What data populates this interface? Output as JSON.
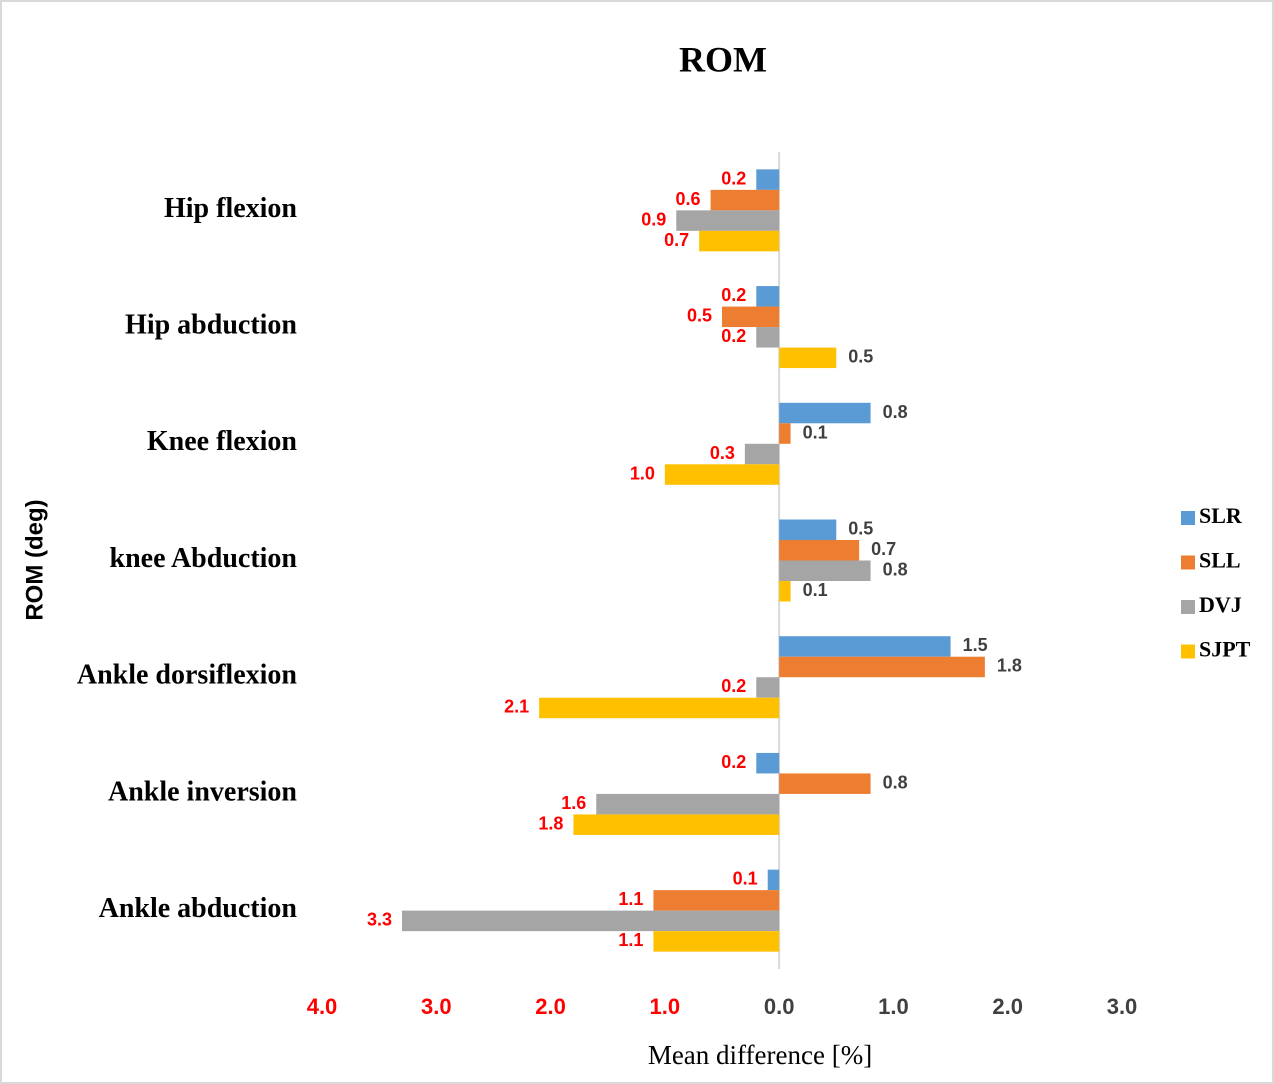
{
  "chart_data": {
    "type": "hbar",
    "title": "ROM",
    "xlabel": "Mean difference [%]",
    "ylabel": "ROM (deg)",
    "categories": [
      "Hip flexion",
      "Hip abduction",
      "Knee flexion",
      "knee Abduction",
      "Ankle dorsiflexion",
      "Ankle inversion",
      "Ankle abduction"
    ],
    "series": [
      {
        "name": "SLR",
        "color": "#5b9bd5",
        "values": [
          -0.2,
          -0.2,
          0.8,
          0.5,
          1.5,
          -0.2,
          -0.1
        ],
        "value_labels": [
          "0.2",
          "0.2",
          "0.8",
          "0.5",
          "1.5",
          "0.2",
          "0.1"
        ]
      },
      {
        "name": "SLL",
        "color": "#ed7d31",
        "values": [
          -0.6,
          -0.5,
          0.1,
          0.7,
          1.8,
          0.8,
          -1.1
        ],
        "value_labels": [
          "0.6",
          "0.5",
          "0.1",
          "0.7",
          "1.8",
          "0.8",
          "1.1"
        ]
      },
      {
        "name": "DVJ",
        "color": "#a5a5a5",
        "values": [
          -0.9,
          -0.2,
          -0.3,
          0.8,
          -0.2,
          -1.6,
          -3.3
        ],
        "value_labels": [
          "0.9",
          "0.2",
          "0.3",
          "0.8",
          "0.2",
          "1.6",
          "3.3"
        ]
      },
      {
        "name": "SJPT",
        "color": "#ffc000",
        "values": [
          -0.7,
          0.5,
          -1.0,
          0.1,
          -2.1,
          -1.8,
          -1.1
        ],
        "value_labels": [
          "0.7",
          "0.5",
          "1.0",
          "0.1",
          "2.1",
          "1.8",
          "1.1"
        ]
      }
    ],
    "xlim": [
      -4,
      3
    ],
    "xticks": [
      {
        "value": -4,
        "label": "4.0"
      },
      {
        "value": -3,
        "label": "3.0"
      },
      {
        "value": -2,
        "label": "2.0"
      },
      {
        "value": -1,
        "label": "1.0"
      },
      {
        "value": 0,
        "label": "0.0"
      },
      {
        "value": 1,
        "label": "1.0"
      },
      {
        "value": 2,
        "label": "2.0"
      },
      {
        "value": 3,
        "label": "3.0"
      }
    ],
    "legend": "right"
  }
}
